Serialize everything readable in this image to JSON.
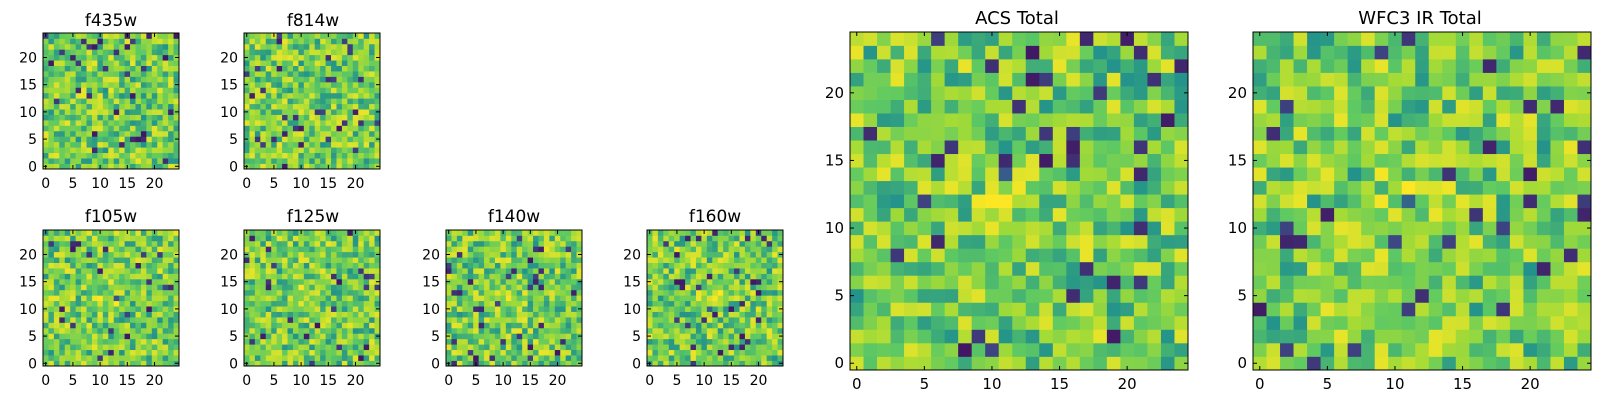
{
  "figure": {
    "colormap": [
      "#440154",
      "#3b528b",
      "#21918c",
      "#5ec962",
      "#a5db36",
      "#fde725"
    ]
  },
  "chart_data": [
    {
      "type": "heatmap",
      "title": "f435w",
      "grid_size": 25,
      "x_ticks": [
        0,
        5,
        10,
        15,
        20
      ],
      "y_ticks": [
        0,
        5,
        10,
        15,
        20
      ],
      "xlim": [
        -0.5,
        24.5
      ],
      "ylim": [
        -0.5,
        24.5
      ],
      "grid": false
    },
    {
      "type": "heatmap",
      "title": "f814w",
      "grid_size": 25,
      "x_ticks": [
        0,
        5,
        10,
        15,
        20
      ],
      "y_ticks": [
        0,
        5,
        10,
        15,
        20
      ],
      "xlim": [
        -0.5,
        24.5
      ],
      "ylim": [
        -0.5,
        24.5
      ],
      "grid": false
    },
    {
      "type": "heatmap",
      "title": "f105w",
      "grid_size": 25,
      "x_ticks": [
        0,
        5,
        10,
        15,
        20
      ],
      "y_ticks": [
        0,
        5,
        10,
        15,
        20
      ],
      "xlim": [
        -0.5,
        24.5
      ],
      "ylim": [
        -0.5,
        24.5
      ],
      "grid": false
    },
    {
      "type": "heatmap",
      "title": "f125w",
      "grid_size": 25,
      "x_ticks": [
        0,
        5,
        10,
        15,
        20
      ],
      "y_ticks": [
        0,
        5,
        10,
        15,
        20
      ],
      "xlim": [
        -0.5,
        24.5
      ],
      "ylim": [
        -0.5,
        24.5
      ],
      "grid": false
    },
    {
      "type": "heatmap",
      "title": "f140w",
      "grid_size": 25,
      "x_ticks": [
        0,
        5,
        10,
        15,
        20
      ],
      "y_ticks": [
        0,
        5,
        10,
        15,
        20
      ],
      "xlim": [
        -0.5,
        24.5
      ],
      "ylim": [
        -0.5,
        24.5
      ],
      "grid": false
    },
    {
      "type": "heatmap",
      "title": "f160w",
      "grid_size": 25,
      "x_ticks": [
        0,
        5,
        10,
        15,
        20
      ],
      "y_ticks": [
        0,
        5,
        10,
        15,
        20
      ],
      "xlim": [
        -0.5,
        24.5
      ],
      "ylim": [
        -0.5,
        24.5
      ],
      "grid": false
    },
    {
      "type": "heatmap",
      "title": "ACS Total",
      "grid_size": 25,
      "x_ticks": [
        0,
        5,
        10,
        15,
        20
      ],
      "y_ticks": [
        0,
        5,
        10,
        15,
        20
      ],
      "xlim": [
        -0.5,
        24.5
      ],
      "ylim": [
        -0.5,
        24.5
      ],
      "grid": false
    },
    {
      "type": "heatmap",
      "title": "WFC3 IR Total",
      "grid_size": 25,
      "x_ticks": [
        0,
        5,
        10,
        15,
        20
      ],
      "y_ticks": [
        0,
        5,
        10,
        15,
        20
      ],
      "xlim": [
        -0.5,
        24.5
      ],
      "ylim": [
        -0.5,
        24.5
      ],
      "grid": false
    }
  ]
}
